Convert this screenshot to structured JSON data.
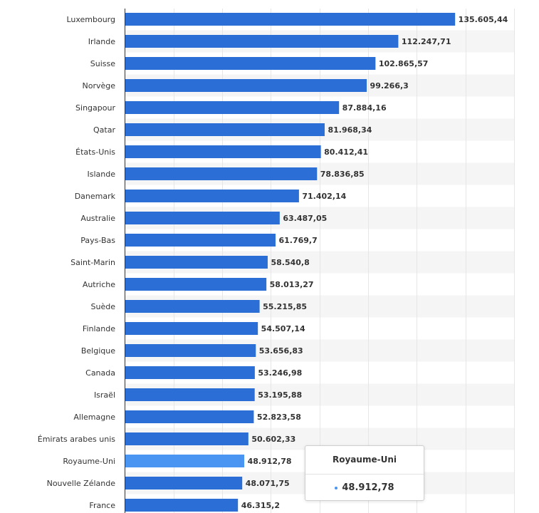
{
  "chart_data": {
    "type": "bar",
    "orientation": "horizontal",
    "categories": [
      "Luxembourg",
      "Irlande",
      "Suisse",
      "Norvège",
      "Singapour",
      "Qatar",
      "États-Unis",
      "Islande",
      "Danemark",
      "Australie",
      "Pays-Bas",
      "Saint-Marin",
      "Autriche",
      "Suède",
      "Finlande",
      "Belgique",
      "Canada",
      "Israël",
      "Allemagne",
      "Émirats arabes unis",
      "Royaume-Uni",
      "Nouvelle Zélande",
      "France"
    ],
    "values": [
      135605.44,
      112247.71,
      102865.57,
      99266.3,
      87884.16,
      81968.34,
      80412.41,
      78836.85,
      71402.14,
      63487.05,
      61769.7,
      58540.8,
      58013.27,
      55215.85,
      54507.14,
      53656.83,
      53246.98,
      53195.88,
      52823.58,
      50602.33,
      48912.78,
      48071.75,
      46315.2
    ],
    "value_labels": [
      "135.605,44",
      "112.247,71",
      "102.865,57",
      "99.266,3",
      "87.884,16",
      "81.968,34",
      "80.412,41",
      "78.836,85",
      "71.402,14",
      "63.487,05",
      "61.769,7",
      "58.540,8",
      "58.013,27",
      "55.215,85",
      "54.507,14",
      "53.656,83",
      "53.246,98",
      "53.195,88",
      "52.823,58",
      "50.602,33",
      "48.912,78",
      "48.071,75",
      "46.315,2"
    ],
    "xlim": [
      0,
      160000
    ],
    "grid": true,
    "highlighted_category": "Royaume-Uni",
    "colors": {
      "bar": "#2b6fd6",
      "bar_highlight": "#4a95f2",
      "stripe": "#f5f5f5"
    }
  },
  "tooltip": {
    "title": "Royaume-Uni",
    "value": "48.912,78"
  }
}
